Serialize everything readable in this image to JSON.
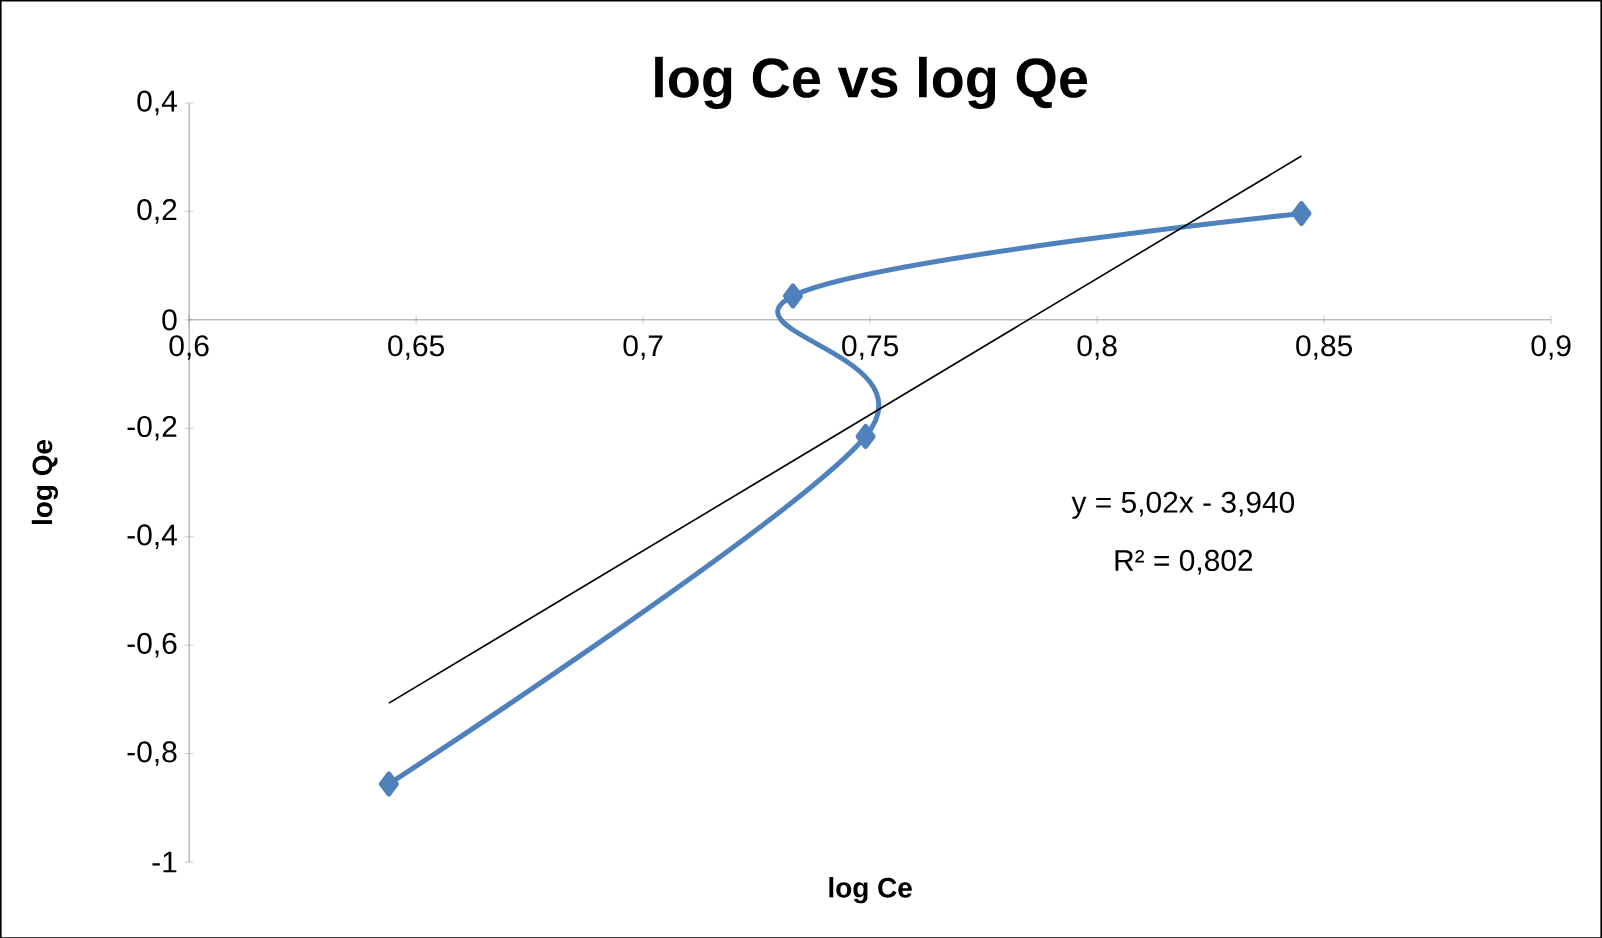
{
  "chart_data": {
    "type": "line",
    "title": "log Ce vs log Qe",
    "xlabel": "log Ce",
    "ylabel": "log Qe",
    "series": [
      {
        "color": "#4f81bd",
        "marker": "diamond",
        "x": [
          0.644,
          0.749,
          0.733,
          0.845
        ],
        "values": [
          -0.856,
          -0.215,
          0.044,
          0.196
        ]
      },
      {
        "color": "#000000",
        "marker": "none",
        "x": [
          0.644,
          0.845
        ],
        "values": [
          -0.707,
          0.302
        ]
      }
    ],
    "xlim": [
      0.6,
      0.9
    ],
    "ylim": [
      -1,
      0.4
    ],
    "xticks": [
      {
        "value": 0.6,
        "label": "0,6"
      },
      {
        "value": 0.65,
        "label": "0,65"
      },
      {
        "value": 0.7,
        "label": "0,7"
      },
      {
        "value": 0.75,
        "label": "0,75"
      },
      {
        "value": 0.8,
        "label": "0,8"
      },
      {
        "value": 0.85,
        "label": "0,85"
      },
      {
        "value": 0.9,
        "label": "0,9"
      }
    ],
    "yticks": [
      {
        "value": -1,
        "label": "-1"
      },
      {
        "value": -0.8,
        "label": "-0,8"
      },
      {
        "value": -0.6,
        "label": "-0,6"
      },
      {
        "value": -0.4,
        "label": "-0,4"
      },
      {
        "value": -0.2,
        "label": "-0,2"
      },
      {
        "value": 0,
        "label": "0"
      },
      {
        "value": 0.2,
        "label": "0,2"
      },
      {
        "value": 0.4,
        "label": "0,4"
      }
    ],
    "annotations": [
      "y = 5,02x - 3,940",
      "R² = 0,802"
    ]
  }
}
